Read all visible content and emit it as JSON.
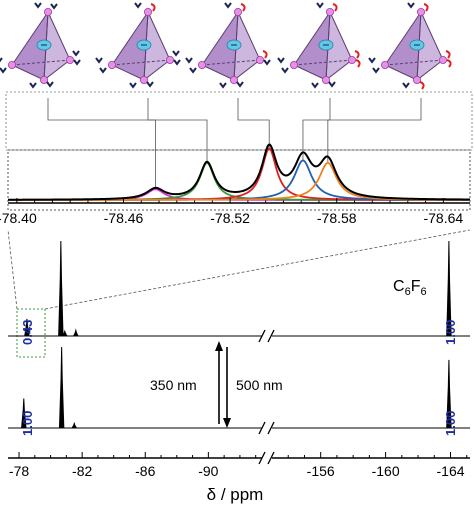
{
  "figure": {
    "colors": {
      "cage_fill": "#a57bc2",
      "cage_edge": "#5a3d73",
      "vertex": "#e88fe8",
      "center_dot": "#5fc9e8",
      "ligand": "#1c2457",
      "ligand_mod": "#e02020",
      "integral_text": "#1c2fa0"
    }
  },
  "chart_data": [
    {
      "type": "line",
      "panel": "inset",
      "x_tick_labels": [
        "-78.40",
        "-78.46",
        "-78.52",
        "-78.58",
        "-78.64"
      ],
      "x_ticks": [
        -78.4,
        -78.46,
        -78.52,
        -78.58,
        -78.64
      ],
      "xlim": [
        -78.395,
        -78.655
      ],
      "series": [
        {
          "color": "#d62fd6",
          "center": -78.478,
          "height": 0.18,
          "width": 0.006
        },
        {
          "color": "#3a9a3a",
          "center": -78.507,
          "height": 0.62,
          "width": 0.005
        },
        {
          "color": "#e02020",
          "center": -78.542,
          "height": 0.86,
          "width": 0.005
        },
        {
          "color": "#2060b0",
          "center": -78.561,
          "height": 0.66,
          "width": 0.006
        },
        {
          "color": "#f08020",
          "center": -78.575,
          "height": 0.62,
          "width": 0.006
        }
      ],
      "envelope_color": "#000000",
      "legend": "none",
      "grid": false
    },
    {
      "type": "line",
      "panel": "main",
      "xlabel": "δ / ppm",
      "axis_break": "//",
      "x_tick_labels_left": [
        "-78",
        "-82",
        "-86",
        "-90"
      ],
      "x_ticks_left": [
        -78,
        -82,
        -86,
        -90
      ],
      "xlim_left": [
        -77.3,
        -93.4
      ],
      "x_tick_labels_right": [
        "-156",
        "-160",
        "-164"
      ],
      "x_ticks_right": [
        -156,
        -160,
        -164
      ],
      "xlim_right": [
        -153.0,
        -165.2
      ],
      "series": [
        {
          "spectrum": "top",
          "peaks": [
            {
              "x": -78.5,
              "height": 0.18
            },
            {
              "x": -80.65,
              "height": 1.0
            },
            {
              "x": -80.9,
              "height": 0.05
            },
            {
              "x": -81.6,
              "height": 0.06
            },
            {
              "x": -163.9,
              "height": 1.0
            }
          ],
          "integrals": [
            "0.43",
            "1.00"
          ]
        },
        {
          "spectrum": "bottom",
          "peaks": [
            {
              "x": -78.3,
              "height": 0.32
            },
            {
              "x": -80.7,
              "height": 0.88
            },
            {
              "x": -81.5,
              "height": 0.05
            },
            {
              "x": -163.9,
              "height": 0.74
            }
          ],
          "integrals": [
            "1.00",
            "1.00"
          ]
        }
      ],
      "annotations": {
        "reference": "C6F6",
        "reference_main": "C",
        "reference_sub1": "6",
        "reference_mid": "F",
        "reference_sub2": "6",
        "arrow_up_label": "350 nm",
        "arrow_down_label": "500 nm"
      },
      "legend": "none",
      "grid": false
    }
  ]
}
